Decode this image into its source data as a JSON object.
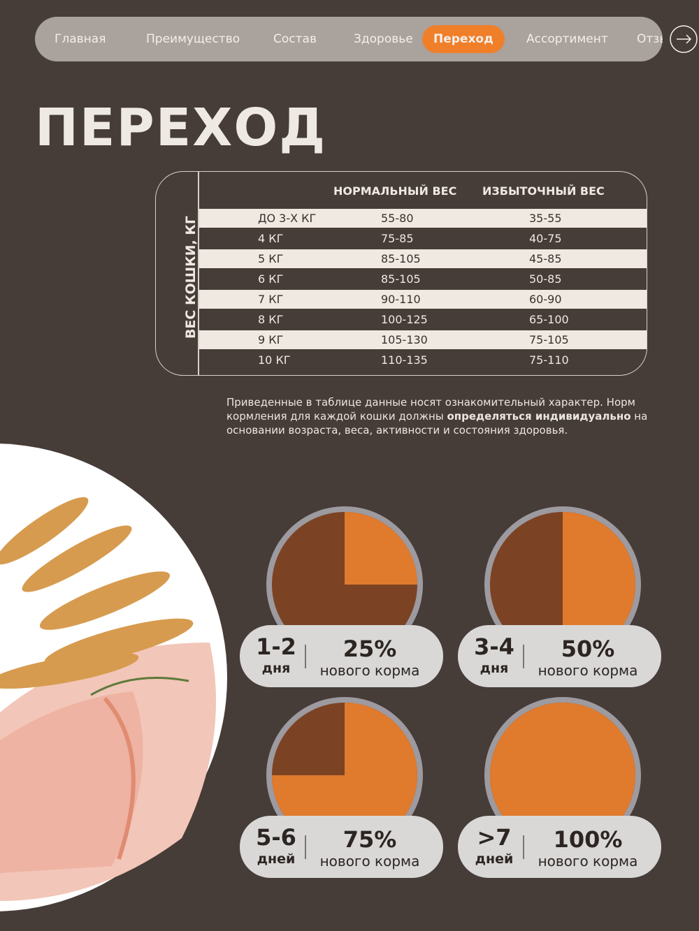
{
  "nav": {
    "items": [
      "Главная",
      "Преимущество",
      "Состав",
      "Здоровье",
      "Переход",
      "Ассортимент",
      "Отзывы"
    ],
    "active": 4
  },
  "title": "ПЕРЕХОД",
  "table": {
    "side_label": "ВЕС КОШКИ, КГ",
    "headers": [
      "НОРМАЛЬНЫЙ ВЕС",
      "ИЗБЫТОЧНЫЙ ВЕС"
    ],
    "rows": [
      [
        "ДО 3-Х КГ",
        "55-80",
        "35-55"
      ],
      [
        "4 КГ",
        "75-85",
        "40-75"
      ],
      [
        "5 КГ",
        "85-105",
        "45-85"
      ],
      [
        "6 КГ",
        "85-105",
        "50-85"
      ],
      [
        "7 КГ",
        "90-110",
        "60-90"
      ],
      [
        "8 КГ",
        "100-125",
        "65-100"
      ],
      [
        "9 КГ",
        "105-130",
        "75-105"
      ],
      [
        "10 КГ",
        "110-135",
        "75-110"
      ]
    ]
  },
  "note": {
    "before": "Приведенные в таблице данные носят ознакомительный характер. Норм кормления для каждой кошки должны ",
    "bold": "определяться индивидуально",
    "after": " на основании возраста, веса, активности и состояния здоровья."
  },
  "steps": [
    {
      "days": "1-2",
      "unit": "дня",
      "share": 25,
      "share_label": "25%",
      "caption": "нового корма"
    },
    {
      "days": "3-4",
      "unit": "дня",
      "share": 50,
      "share_label": "50%",
      "caption": "нового корма"
    },
    {
      "days": "5-6",
      "unit": "дней",
      "share": 75,
      "share_label": "75%",
      "caption": "нового корма"
    },
    {
      "days": ">7",
      "unit": "дней",
      "share": 100,
      "share_label": "100%",
      "caption": "нового корма"
    }
  ]
}
